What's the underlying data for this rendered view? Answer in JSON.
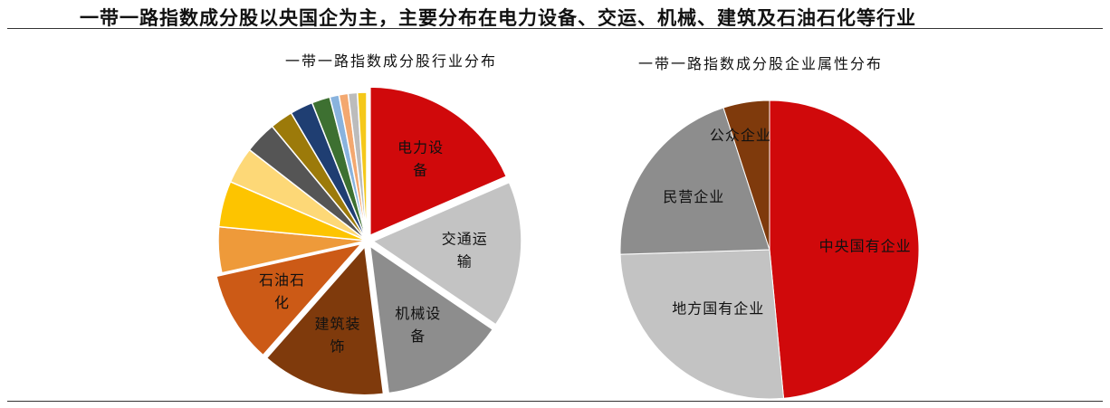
{
  "headline": "一带一路指数成分股以央国企为主，主要分布在电力设备、交运、机械、建筑及石油石化等行业",
  "colors": {
    "red": "#d0090b",
    "light_gray": "#c3c3c3",
    "mid_gray": "#8d8d8d",
    "brown": "#7f3a0c",
    "dark_orange": "#cc5a16",
    "orange": "#ee9a3a",
    "yellow": "#fdc400",
    "light_yellow": "#fdd877",
    "dark_gray": "#555555",
    "olive": "#9c7a0a",
    "navy": "#1f3e72",
    "green": "#3d7031",
    "light_blue": "#89b3de",
    "light_orange": "#f3a870",
    "pale_gray": "#bcbcbc",
    "gold": "#f5c81a"
  },
  "chart_data": [
    {
      "type": "pie",
      "title": "一带一路指数成分股行业分布",
      "start_angle_deg": 0,
      "direction": "clockwise",
      "slices": [
        {
          "label": "电力设备",
          "value": 18.5,
          "color": "#d0090b",
          "exploded": true
        },
        {
          "label": "交通运输",
          "value": 16,
          "color": "#c3c3c3",
          "exploded": true
        },
        {
          "label": "机械设备",
          "value": 13.5,
          "color": "#8d8d8d",
          "exploded": true
        },
        {
          "label": "建筑装饰",
          "value": 13.5,
          "color": "#7f3a0c",
          "exploded": true
        },
        {
          "label": "石油石化",
          "value": 10,
          "color": "#cc5a16",
          "exploded": true
        },
        {
          "label": "",
          "value": 5,
          "color": "#ee9a3a",
          "exploded": false
        },
        {
          "label": "",
          "value": 5,
          "color": "#fdc400",
          "exploded": false
        },
        {
          "label": "",
          "value": 4,
          "color": "#fdd877",
          "exploded": false
        },
        {
          "label": "",
          "value": 3.5,
          "color": "#555555",
          "exploded": false
        },
        {
          "label": "",
          "value": 2.5,
          "color": "#9c7a0a",
          "exploded": false
        },
        {
          "label": "",
          "value": 2.5,
          "color": "#1f3e72",
          "exploded": false
        },
        {
          "label": "",
          "value": 2,
          "color": "#3d7031",
          "exploded": false
        },
        {
          "label": "",
          "value": 1,
          "color": "#89b3de",
          "exploded": false
        },
        {
          "label": "",
          "value": 1,
          "color": "#f3a870",
          "exploded": false
        },
        {
          "label": "",
          "value": 1,
          "color": "#bcbcbc",
          "exploded": false
        },
        {
          "label": "",
          "value": 1,
          "color": "#f5c81a",
          "exploded": false
        }
      ]
    },
    {
      "type": "pie",
      "title": "一带一路指数成分股企业属性分布",
      "start_angle_deg": 0,
      "direction": "clockwise",
      "slices": [
        {
          "label": "中央国有企业",
          "value": 48.5,
          "color": "#d0090b"
        },
        {
          "label": "地方国有企业",
          "value": 26,
          "color": "#c3c3c3"
        },
        {
          "label": "民营企业",
          "value": 20.5,
          "color": "#8d8d8d"
        },
        {
          "label": "公众企业",
          "value": 5,
          "color": "#7f3a0c"
        }
      ]
    }
  ]
}
